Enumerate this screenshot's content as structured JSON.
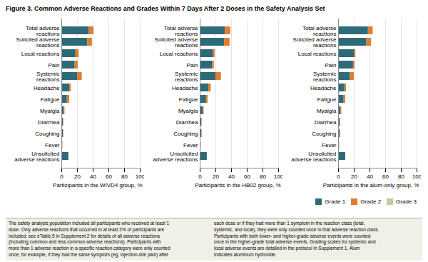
{
  "chart_data": [
    {
      "type": "bar",
      "orientation": "horizontal",
      "stacked": true,
      "title": "Figure 3. Common Adverse Reactions and Grades Within 7 Days After 2 Doses in the Safety Analysis Set",
      "categories": [
        "Total adverse\nreactions",
        "Solicited adverse\nreactions",
        "Local reactions",
        "Pain",
        "Systemic\nreactions",
        "Headache",
        "Fatigue",
        "Myalgia",
        "Diarrhea",
        "Coughing",
        "Fever",
        "Unsolicited\nadverse reactions"
      ],
      "xlabel": "Participants in the WIVD4 group, %",
      "series": [
        {
          "name": "Grade 1",
          "color": "#2e6b78",
          "values": [
            35,
            33,
            18,
            17,
            20,
            10,
            7,
            3,
            2,
            2,
            1,
            9
          ]
        },
        {
          "name": "Grade 2",
          "color": "#e07d2e",
          "values": [
            6,
            6,
            4,
            4,
            6,
            2,
            3,
            1,
            0.5,
            0.5,
            0.3,
            0
          ]
        },
        {
          "name": "Grade 3",
          "color": "#c8c8a0",
          "values": [
            0,
            0,
            0,
            0,
            0,
            0,
            0,
            0,
            0,
            0,
            0,
            0
          ]
        }
      ],
      "xlim": [
        0,
        100
      ],
      "xticks": [
        0,
        20,
        40,
        60,
        80,
        100
      ],
      "grid": true,
      "annotations": [
        "The safety analysis population included all participants who received at least 1\ndose. Only adverse reactions that occurred in at least 2% of participants are\nincluded; see eTable 5 in Supplement 2 for details of all adverse reactions\n(including common and less common adverse reactions). Participants with\nmore than 1 adverse reaction in a specific reaction category were only counted\nonce; for example, if they had the same symptom (eg, injection-site pain) after",
        "each dose or if they had more than 1 symptom in the reaction class (total,\nsystemic, and local), they were only counted once in that adverse reaction class.\nParticipants with both lower- and higher-grade adverse events were counted\nonce in the higher-grade total adverse events. Grading scales for systemic and\nlocal adverse events are detailed in the protocol in Supplement 1. Alum\nindicates aluminum hydroxide."
      ]
    },
    {
      "type": "bar",
      "orientation": "horizontal",
      "stacked": true,
      "categories": [
        "Total adverse\nreactions",
        "Solicited adverse\nreactions",
        "Local reactions",
        "Pain",
        "Systemic\nreactions",
        "Headache",
        "Fatigue",
        "Myalgia",
        "Diarrhea",
        "Coughing",
        "Fever",
        "Unsolicited\nadverse reactions"
      ],
      "xlabel": "Participants in the HB02 group, %",
      "series": [
        {
          "name": "Grade 1",
          "color": "#2e6b78",
          "values": [
            32,
            31,
            17,
            16,
            20,
            11,
            8,
            4,
            2,
            2,
            1,
            9
          ]
        },
        {
          "name": "Grade 2",
          "color": "#e07d2e",
          "values": [
            7,
            7,
            2,
            2,
            7,
            3,
            2,
            1,
            0.5,
            0.5,
            0.3,
            0
          ]
        },
        {
          "name": "Grade 3",
          "color": "#c8c8a0",
          "values": [
            0,
            0,
            0,
            0,
            0,
            0,
            0,
            0,
            0,
            0,
            0,
            0
          ]
        }
      ],
      "xlim": [
        0,
        100
      ],
      "xticks": [
        0,
        20,
        40,
        60,
        80,
        100
      ],
      "grid": true
    },
    {
      "type": "bar",
      "orientation": "horizontal",
      "stacked": true,
      "categories": [
        "Total adverse\nreactions",
        "Solicited adverse\nreactions",
        "Local reactions",
        "Pain",
        "Systemic\nreactions",
        "Headache",
        "Fatigue",
        "Myalgia",
        "Diarrhea",
        "Coughing",
        "Fever",
        "Unsolicited\nadverse reactions"
      ],
      "xlabel": "Participants in the alum-only group, %",
      "series": [
        {
          "name": "Grade 1",
          "color": "#2e6b78",
          "values": [
            38,
            36,
            20,
            19,
            15,
            8,
            7,
            3,
            2,
            2,
            1,
            9
          ]
        },
        {
          "name": "Grade 2",
          "color": "#e07d2e",
          "values": [
            6,
            6,
            2,
            2,
            5,
            2,
            2,
            1,
            0.5,
            0.5,
            0.3,
            0
          ]
        },
        {
          "name": "Grade 3",
          "color": "#c8c8a0",
          "values": [
            0,
            0,
            0,
            0,
            0,
            0,
            0,
            0,
            0,
            0,
            0,
            0
          ]
        }
      ],
      "xlim": [
        0,
        100
      ],
      "xticks": [
        0,
        20,
        40,
        60,
        80,
        100
      ],
      "grid": true,
      "legend": "lower right"
    }
  ]
}
